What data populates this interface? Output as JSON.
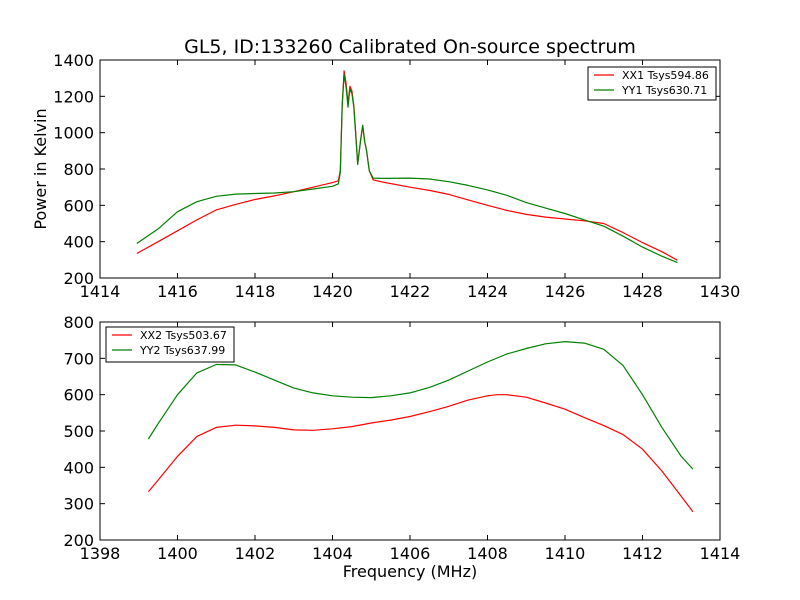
{
  "title": "GL5, ID:133260 Calibrated On-source spectrum",
  "xlabel": "Frequency (MHz)",
  "colors": {
    "red": "#ff0000",
    "green": "#008000"
  },
  "chart_data": [
    {
      "type": "line",
      "ylabel": "Power in Kelvin",
      "xlim": [
        1414,
        1430
      ],
      "ylim": [
        200,
        1400
      ],
      "xticks": [
        1414,
        1416,
        1418,
        1420,
        1422,
        1424,
        1426,
        1428,
        1430
      ],
      "yticks": [
        200,
        400,
        600,
        800,
        1000,
        1200,
        1400
      ],
      "grid": false,
      "legend_position": "top-right",
      "series": [
        {
          "name": "XX1 Tsys594.86",
          "color": "#ff0000",
          "points": [
            [
              1414.95,
              335
            ],
            [
              1415.5,
              400
            ],
            [
              1416,
              460
            ],
            [
              1416.5,
              520
            ],
            [
              1417,
              575
            ],
            [
              1417.5,
              605
            ],
            [
              1418,
              632
            ],
            [
              1418.5,
              652
            ],
            [
              1419,
              675
            ],
            [
              1419.5,
              700
            ],
            [
              1420,
              725
            ],
            [
              1420.15,
              735
            ],
            [
              1420.2,
              790
            ],
            [
              1420.25,
              1150
            ],
            [
              1420.3,
              1340
            ],
            [
              1420.35,
              1270
            ],
            [
              1420.4,
              1160
            ],
            [
              1420.45,
              1255
            ],
            [
              1420.5,
              1230
            ],
            [
              1420.55,
              1150
            ],
            [
              1420.6,
              1000
            ],
            [
              1420.65,
              830
            ],
            [
              1420.72,
              950
            ],
            [
              1420.78,
              1040
            ],
            [
              1420.83,
              950
            ],
            [
              1420.88,
              900
            ],
            [
              1420.95,
              790
            ],
            [
              1421.05,
              740
            ],
            [
              1421.3,
              728
            ],
            [
              1422,
              700
            ],
            [
              1422.5,
              682
            ],
            [
              1423,
              660
            ],
            [
              1423.5,
              630
            ],
            [
              1424,
              600
            ],
            [
              1424.5,
              572
            ],
            [
              1425,
              550
            ],
            [
              1425.5,
              535
            ],
            [
              1426,
              525
            ],
            [
              1426.5,
              515
            ],
            [
              1427,
              500
            ],
            [
              1427.5,
              450
            ],
            [
              1428,
              395
            ],
            [
              1428.5,
              345
            ],
            [
              1428.9,
              298
            ]
          ]
        },
        {
          "name": "YY1 Tsys630.71",
          "color": "#008000",
          "points": [
            [
              1414.95,
              390
            ],
            [
              1415.5,
              470
            ],
            [
              1416,
              565
            ],
            [
              1416.5,
              620
            ],
            [
              1417,
              650
            ],
            [
              1417.5,
              662
            ],
            [
              1418,
              665
            ],
            [
              1418.5,
              668
            ],
            [
              1419,
              675
            ],
            [
              1419.5,
              690
            ],
            [
              1420,
              705
            ],
            [
              1420.15,
              718
            ],
            [
              1420.2,
              780
            ],
            [
              1420.25,
              1150
            ],
            [
              1420.3,
              1320
            ],
            [
              1420.35,
              1250
            ],
            [
              1420.4,
              1140
            ],
            [
              1420.45,
              1240
            ],
            [
              1420.5,
              1215
            ],
            [
              1420.55,
              1140
            ],
            [
              1420.6,
              990
            ],
            [
              1420.65,
              825
            ],
            [
              1420.72,
              950
            ],
            [
              1420.78,
              1040
            ],
            [
              1420.83,
              950
            ],
            [
              1420.88,
              900
            ],
            [
              1420.95,
              790
            ],
            [
              1421.05,
              750
            ],
            [
              1421.3,
              748
            ],
            [
              1422,
              750
            ],
            [
              1422.5,
              745
            ],
            [
              1423,
              730
            ],
            [
              1423.5,
              710
            ],
            [
              1424,
              685
            ],
            [
              1424.5,
              655
            ],
            [
              1425,
              615
            ],
            [
              1425.5,
              585
            ],
            [
              1426,
              555
            ],
            [
              1426.5,
              520
            ],
            [
              1427,
              485
            ],
            [
              1427.5,
              430
            ],
            [
              1428,
              370
            ],
            [
              1428.5,
              320
            ],
            [
              1428.9,
              285
            ]
          ]
        }
      ]
    },
    {
      "type": "line",
      "ylabel": "",
      "xlim": [
        1398,
        1414
      ],
      "ylim": [
        200,
        800
      ],
      "xticks": [
        1398,
        1400,
        1402,
        1404,
        1406,
        1408,
        1410,
        1412,
        1414
      ],
      "yticks": [
        200,
        300,
        400,
        500,
        600,
        700,
        800
      ],
      "grid": false,
      "legend_position": "top-left",
      "series": [
        {
          "name": "XX2 Tsys503.67",
          "color": "#ff0000",
          "points": [
            [
              1399.25,
              333
            ],
            [
              1399.5,
              365
            ],
            [
              1400,
              430
            ],
            [
              1400.5,
              485
            ],
            [
              1401,
              510
            ],
            [
              1401.5,
              516
            ],
            [
              1402,
              514
            ],
            [
              1402.5,
              510
            ],
            [
              1403,
              503
            ],
            [
              1403.5,
              502
            ],
            [
              1404,
              506
            ],
            [
              1404.5,
              512
            ],
            [
              1405,
              522
            ],
            [
              1405.5,
              530
            ],
            [
              1406,
              540
            ],
            [
              1406.5,
              553
            ],
            [
              1407,
              568
            ],
            [
              1407.5,
              585
            ],
            [
              1408,
              597
            ],
            [
              1408.25,
              600
            ],
            [
              1408.5,
              600
            ],
            [
              1409,
              593
            ],
            [
              1409.5,
              577
            ],
            [
              1410,
              560
            ],
            [
              1410.5,
              537
            ],
            [
              1411,
              515
            ],
            [
              1411.5,
              490
            ],
            [
              1412,
              450
            ],
            [
              1412.5,
              390
            ],
            [
              1413,
              320
            ],
            [
              1413.3,
              278
            ]
          ]
        },
        {
          "name": "YY2 Tsys637.99",
          "color": "#008000",
          "points": [
            [
              1399.25,
              478
            ],
            [
              1399.5,
              520
            ],
            [
              1400,
              600
            ],
            [
              1400.5,
              660
            ],
            [
              1401,
              683
            ],
            [
              1401.5,
              682
            ],
            [
              1402,
              662
            ],
            [
              1402.5,
              640
            ],
            [
              1403,
              618
            ],
            [
              1403.5,
              605
            ],
            [
              1404,
              597
            ],
            [
              1404.5,
              593
            ],
            [
              1405,
              592
            ],
            [
              1405.5,
              597
            ],
            [
              1406,
              605
            ],
            [
              1406.5,
              620
            ],
            [
              1407,
              640
            ],
            [
              1407.5,
              665
            ],
            [
              1408,
              690
            ],
            [
              1408.5,
              712
            ],
            [
              1409,
              727
            ],
            [
              1409.5,
              740
            ],
            [
              1410,
              746
            ],
            [
              1410.5,
              742
            ],
            [
              1411,
              725
            ],
            [
              1411.5,
              680
            ],
            [
              1412,
              600
            ],
            [
              1412.5,
              510
            ],
            [
              1413,
              430
            ],
            [
              1413.3,
              395
            ]
          ]
        }
      ]
    }
  ]
}
